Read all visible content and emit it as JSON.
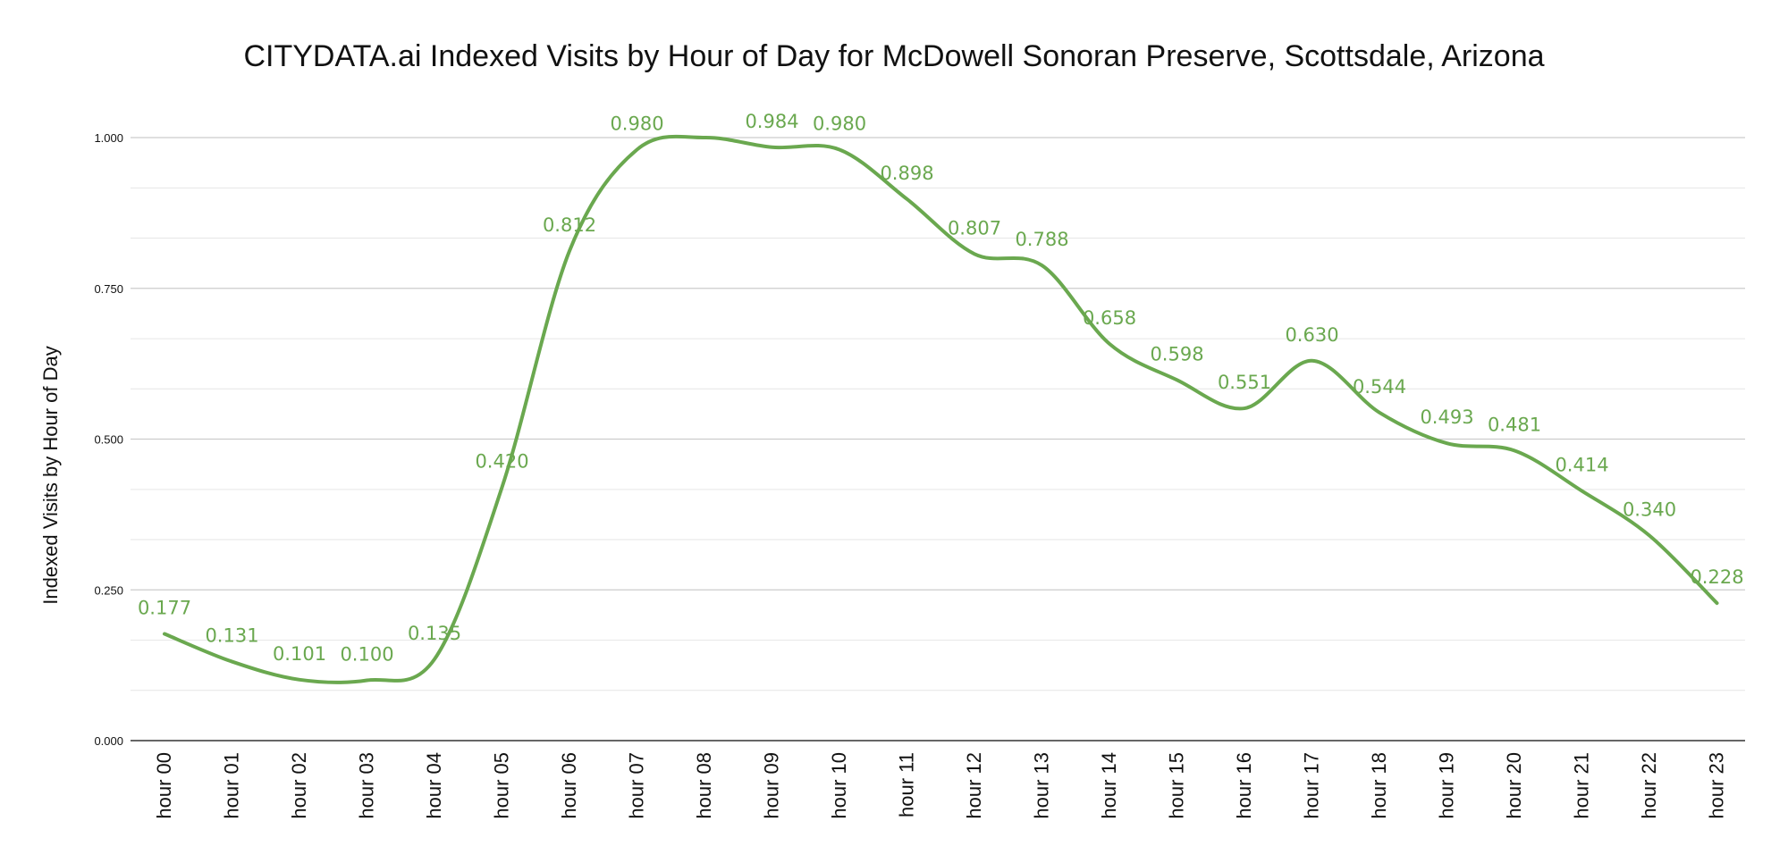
{
  "chart_data": {
    "type": "line",
    "title": "CITYDATA.ai Indexed Visits by Hour of Day for McDowell Sonoran Preserve, Scottsdale, Arizona",
    "xlabel": "",
    "ylabel": "Indexed Visits by Hour of Day",
    "ylim": [
      0,
      1
    ],
    "yticks": [
      "0.000",
      "0.250",
      "0.500",
      "0.750",
      "1.000"
    ],
    "grid": true,
    "smooth": true,
    "legend": "none",
    "categories": [
      "hour 00",
      "hour 01",
      "hour 02",
      "hour 03",
      "hour 04",
      "hour 05",
      "hour 06",
      "hour 07",
      "hour 08",
      "hour 09",
      "hour 10",
      "hour 11",
      "hour 12",
      "hour 13",
      "hour 14",
      "hour 15",
      "hour 16",
      "hour 17",
      "hour 18",
      "hour 19",
      "hour 20",
      "hour 21",
      "hour 22",
      "hour 23"
    ],
    "series": [
      {
        "values": [
          0.177,
          0.131,
          0.101,
          0.1,
          0.135,
          0.42,
          0.812,
          0.98,
          1.0,
          0.984,
          0.98,
          0.898,
          0.807,
          0.788,
          0.658,
          0.598,
          0.551,
          0.63,
          0.544,
          0.493,
          0.481,
          0.414,
          0.34,
          0.228
        ],
        "data_labels": [
          "0.177",
          "0.131",
          "0.101",
          "0.100",
          "0.135",
          "0.420",
          "0.812",
          "0.980",
          "",
          "0.984",
          "0.980",
          "0.898",
          "0.807",
          "0.788",
          "0.658",
          "0.598",
          "0.551",
          "0.630",
          "0.544",
          "0.493",
          "0.481",
          "0.414",
          "0.340",
          "0.228"
        ],
        "color": "#6aa84f"
      }
    ]
  }
}
